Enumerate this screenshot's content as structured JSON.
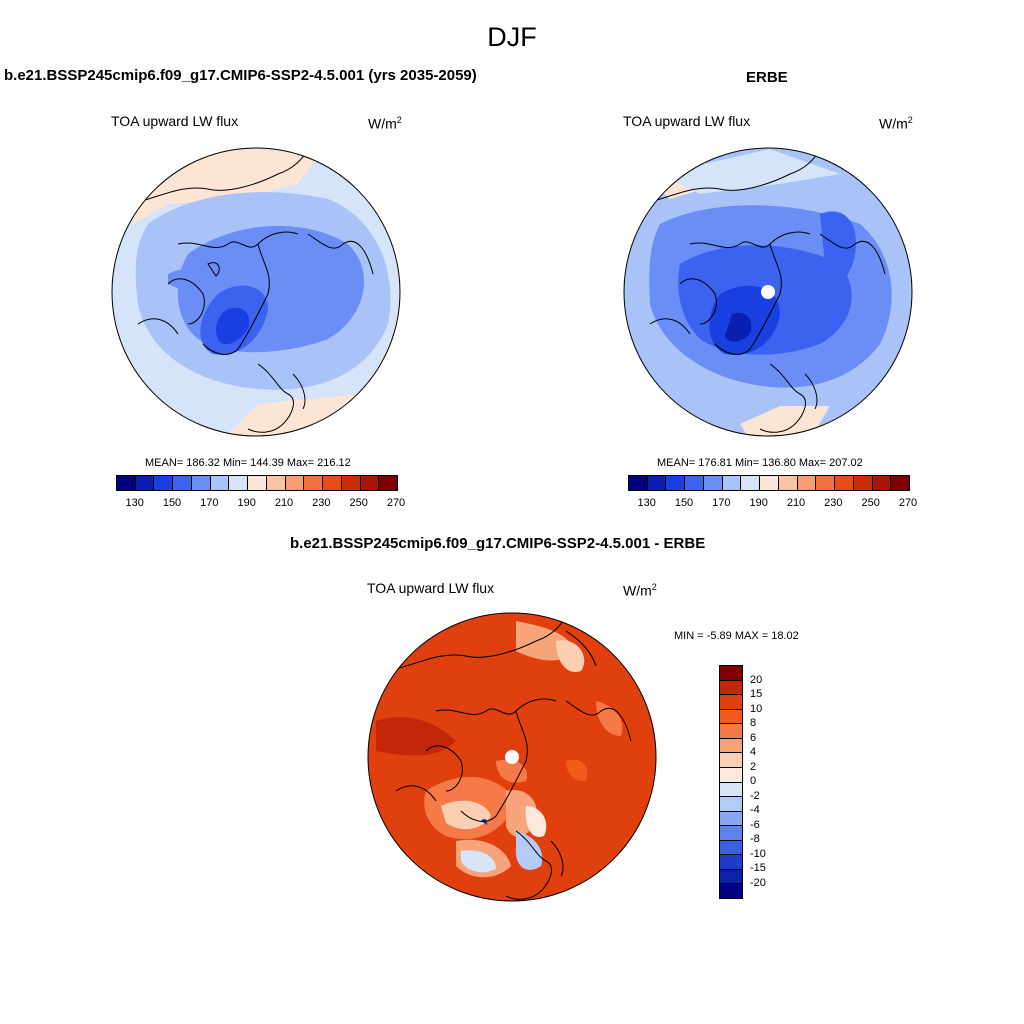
{
  "main_title": "DJF",
  "panels": {
    "model": {
      "title": "b.e21.BSSP245cmip6.f09_g17.CMIP6-SSP2-4.5.001 (yrs 2035-2059)",
      "variable": "TOA upward LW flux",
      "units_base": "W/m",
      "units_sup": "2",
      "stats": "MEAN= 186.32  Min= 144.39  Max= 216.12"
    },
    "obs": {
      "title": "ERBE",
      "variable": "TOA upward LW flux",
      "units_base": "W/m",
      "units_sup": "2",
      "stats": "MEAN= 176.81  Min= 136.80  Max= 207.02"
    },
    "diff": {
      "title": "b.e21.BSSP245cmip6.f09_g17.CMIP6-SSP2-4.5.001 - ERBE",
      "variable": "TOA upward LW flux",
      "units_base": "W/m",
      "units_sup": "2",
      "stats": "MIN =  -5.89 MAX =  18.02"
    }
  },
  "abs_colorbar": {
    "colors": [
      "#00007f",
      "#0a1fb2",
      "#1a3fe0",
      "#3b63f0",
      "#6a8ef5",
      "#a9c2f7",
      "#d6e4fa",
      "#fde5d6",
      "#fbc2a6",
      "#f89c73",
      "#f4703e",
      "#e94a1a",
      "#cc2c08",
      "#a81506",
      "#7f0000"
    ],
    "tick_labels": [
      "130",
      "150",
      "170",
      "190",
      "210",
      "230",
      "250",
      "270"
    ]
  },
  "diff_colorbar": {
    "colors": [
      "#7f0000",
      "#c4260a",
      "#e0400e",
      "#f25a1e",
      "#f57a48",
      "#f8a47a",
      "#fbcfb2",
      "#fde8dc",
      "#d8e4fa",
      "#b3cbf7",
      "#87a8f3",
      "#5c84ee",
      "#3a5ee4",
      "#1f3cc8",
      "#0d20a8",
      "#000080"
    ],
    "labels": [
      "20",
      "15",
      "10",
      "8",
      "6",
      "4",
      "2",
      "0",
      "-2",
      "-4",
      "-6",
      "-8",
      "-10",
      "-15",
      "-20"
    ]
  }
}
